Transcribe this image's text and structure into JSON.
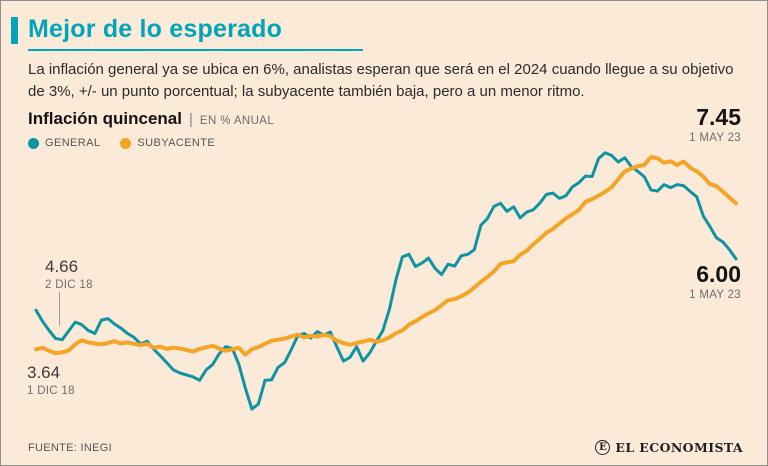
{
  "header": {
    "title": "Mejor de lo esperado",
    "description": "La inflación general ya se ubica en 6%, analistas esperan que será en el 2024 cuando llegue a su objetivo de 3%, +/- un punto porcentual; la subyacente también baja, pero a un menor ritmo."
  },
  "chart": {
    "heading": "Inflación quincenal",
    "separator": "|",
    "unit_label": "EN % ANUAL",
    "annotations": {
      "end_subyacente": {
        "value": "7.45",
        "date": "1 MAY 23"
      },
      "end_general": {
        "value": "6.00",
        "date": "1 MAY 23"
      },
      "start_general": {
        "value": "4.66",
        "date": "2 DIC 18"
      },
      "start_subyacente": {
        "value": "3.64",
        "date": "1 DIC 18"
      }
    }
  },
  "colors": {
    "accent_teal": "#00a5ba",
    "general_line": "#0e93a3",
    "subyacente_line": "#f4a427",
    "background": "#fcead9"
  },
  "chart_data": {
    "type": "line",
    "title": "Inflación quincenal",
    "unit": "EN % ANUAL",
    "x_range": [
      "1 DIC 18",
      "1 MAY 23"
    ],
    "x_frequency": "quincenal (biweekly)",
    "ylim": [
      1.8,
      9.3
    ],
    "grid": false,
    "legend_position": "top-left",
    "series": [
      {
        "name": "GENERAL",
        "color": "#0e93a3",
        "values": [
          4.66,
          4.37,
          4.13,
          3.92,
          3.89,
          4.12,
          4.35,
          4.28,
          4.13,
          4.05,
          4.4,
          4.44,
          4.3,
          4.19,
          4.05,
          3.95,
          3.78,
          3.85,
          3.64,
          3.47,
          3.29,
          3.1,
          3.02,
          2.97,
          2.92,
          2.83,
          3.1,
          3.24,
          3.52,
          3.71,
          3.66,
          3.25,
          2.63,
          2.08,
          2.21,
          2.83,
          2.84,
          3.17,
          3.29,
          3.62,
          3.99,
          4.05,
          3.93,
          4.1,
          4.01,
          4.09,
          3.7,
          3.33,
          3.43,
          3.71,
          3.33,
          3.54,
          3.84,
          4.12,
          4.67,
          5.44,
          6.05,
          6.12,
          5.8,
          5.89,
          6.02,
          5.75,
          5.59,
          5.86,
          5.81,
          6.08,
          6.12,
          6.24,
          6.88,
          7.05,
          7.37,
          7.45,
          7.24,
          7.36,
          7.07,
          7.22,
          7.28,
          7.45,
          7.68,
          7.72,
          7.58,
          7.65,
          7.88,
          7.99,
          8.16,
          8.15,
          8.62,
          8.77,
          8.7,
          8.53,
          8.64,
          8.41,
          8.28,
          8.14,
          7.8,
          7.77,
          7.94,
          7.86,
          7.94,
          7.91,
          7.76,
          7.62,
          7.12,
          6.85,
          6.55,
          6.44,
          6.24,
          6.0
        ]
      },
      {
        "name": "SUBYACENTE",
        "color": "#f4a427",
        "values": [
          3.64,
          3.68,
          3.6,
          3.54,
          3.56,
          3.61,
          3.77,
          3.87,
          3.82,
          3.79,
          3.77,
          3.8,
          3.85,
          3.79,
          3.82,
          3.78,
          3.75,
          3.78,
          3.68,
          3.71,
          3.65,
          3.68,
          3.66,
          3.62,
          3.58,
          3.65,
          3.69,
          3.73,
          3.66,
          3.6,
          3.64,
          3.68,
          3.5,
          3.64,
          3.7,
          3.78,
          3.86,
          3.89,
          3.92,
          3.97,
          4.02,
          3.95,
          3.99,
          3.97,
          4.02,
          3.98,
          3.86,
          3.8,
          3.76,
          3.8,
          3.84,
          3.89,
          3.84,
          3.87,
          3.95,
          4.06,
          4.13,
          4.28,
          4.37,
          4.48,
          4.58,
          4.66,
          4.79,
          4.92,
          4.95,
          5.02,
          5.12,
          5.25,
          5.4,
          5.53,
          5.67,
          5.87,
          5.91,
          5.94,
          6.11,
          6.21,
          6.38,
          6.52,
          6.68,
          6.78,
          6.92,
          7.06,
          7.16,
          7.28,
          7.49,
          7.56,
          7.65,
          7.75,
          7.87,
          8.08,
          8.28,
          8.36,
          8.42,
          8.45,
          8.66,
          8.63,
          8.51,
          8.55,
          8.45,
          8.54,
          8.38,
          8.29,
          8.15,
          7.95,
          7.9,
          7.75,
          7.6,
          7.45
        ]
      }
    ],
    "annotations": [
      {
        "value": 4.66,
        "label": "2 DIC 18",
        "series": "GENERAL",
        "position": "start"
      },
      {
        "value": 3.64,
        "label": "1 DIC 18",
        "series": "SUBYACENTE",
        "position": "start"
      },
      {
        "value": 7.45,
        "label": "1 MAY 23",
        "series": "SUBYACENTE",
        "position": "end"
      },
      {
        "value": 6.0,
        "label": "1 MAY 23",
        "series": "GENERAL",
        "position": "end"
      }
    ]
  },
  "footer": {
    "source": "FUENTE: INEGI",
    "brand": "EL ECONOMISTA",
    "brand_initial": "E"
  }
}
